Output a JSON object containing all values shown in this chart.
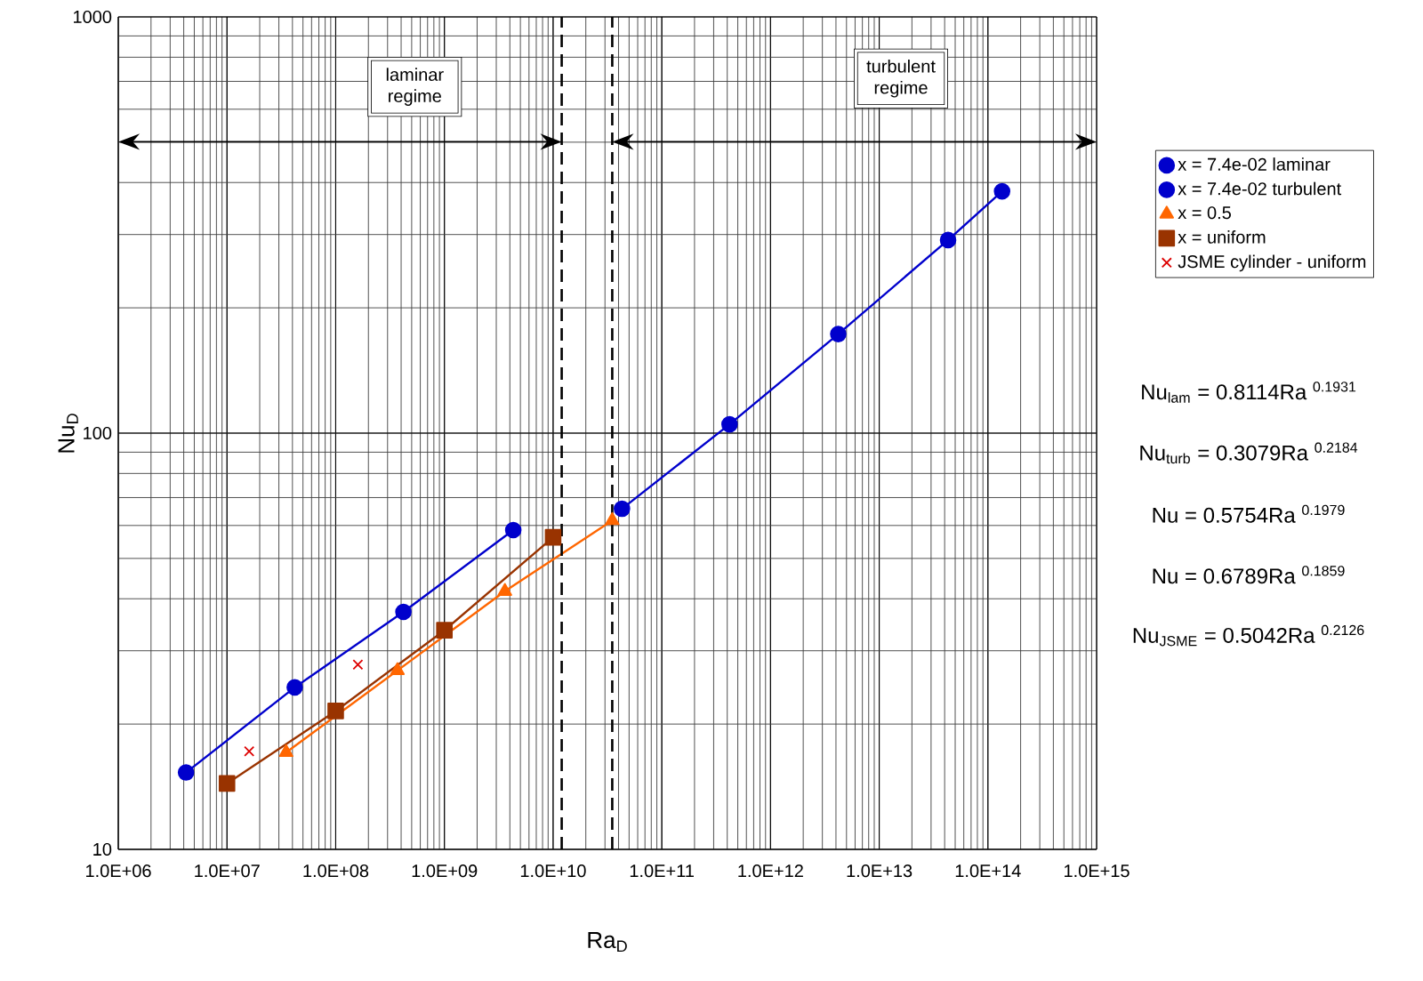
{
  "chart_data": {
    "type": "line",
    "xlabel": "Ra$_{D}$",
    "ylabel": "Nu$_{D}$",
    "log": "xy",
    "grid": true,
    "legend": "right",
    "xlim": [
      1000000,
      1000000000000000
    ],
    "ylim": [
      10,
      1000
    ],
    "xticks": [
      {
        "value": 1000000,
        "label": "1.0E+06"
      },
      {
        "value": 10000000,
        "label": "1.0E+07"
      },
      {
        "value": 100000000,
        "label": "1.0E+08"
      },
      {
        "value": 1000000000,
        "label": "1.0E+09"
      },
      {
        "value": 10000000000,
        "label": "1.0E+10"
      },
      {
        "value": 100000000000,
        "label": "1.0E+11"
      },
      {
        "value": 1000000000000,
        "label": "1.0E+12"
      },
      {
        "value": 10000000000000,
        "label": "1.0E+13"
      },
      {
        "value": 100000000000000,
        "label": "1.0E+14"
      },
      {
        "value": 1000000000000000,
        "label": "1.0E+15"
      }
    ],
    "yticks": [
      10,
      100,
      1000
    ],
    "series": [
      {
        "name": "x = 7.4e-02 laminar",
        "marker": "circle",
        "color": "#0000cc",
        "x": [
          4200000,
          42000000,
          420000000,
          4300000000
        ],
        "values": [
          15.3,
          24.5,
          37.2,
          58.5
        ]
      },
      {
        "name": "x = 7.4e-02 turbulent",
        "marker": "circle",
        "color": "#0000cc",
        "x": [
          43000000000,
          420000000000,
          4200000000000,
          43000000000000,
          135000000000000
        ],
        "values": [
          65.8,
          105,
          173,
          291,
          381
        ]
      },
      {
        "name": "x = 0.5",
        "marker": "triangle",
        "color": "#ff6600",
        "x": [
          35000000,
          370000000,
          3600000000,
          35000000000
        ],
        "values": [
          17.1,
          26.9,
          41.7,
          61.7
        ]
      },
      {
        "name": "x = uniform",
        "marker": "square",
        "color": "#993300",
        "x": [
          10000000,
          100000000,
          1000000000,
          10000000000
        ],
        "values": [
          14.4,
          21.5,
          33.6,
          56.2
        ]
      },
      {
        "name": "JSME cylinder - uniform",
        "type": "scatter",
        "marker": "cross",
        "color": "#dd0000",
        "x": [
          16000000,
          160000000
        ],
        "values": [
          17.2,
          27.8
        ]
      }
    ],
    "ref_lines": [
      {
        "axis": "x",
        "value": 12000000000,
        "color": "#000000",
        "line_style": "dashed"
      },
      {
        "axis": "x",
        "value": 35000000000,
        "color": "#000000",
        "line_style": "dashed"
      }
    ],
    "annotations": [
      "laminar regime",
      "turbulent regime",
      "Nu$_{lam}$ = 0.8114Ra $^{0.1931}$",
      "Nu$_{turb}$ = 0.3079Ra $^{0.2184}$",
      "Nu = 0.5754Ra $^{0.1979}$",
      "Nu = 0.6789Ra $^{0.1859}$",
      "Nu$_{JSME}$ = 0.5042Ra $^{0.2126}$"
    ]
  }
}
